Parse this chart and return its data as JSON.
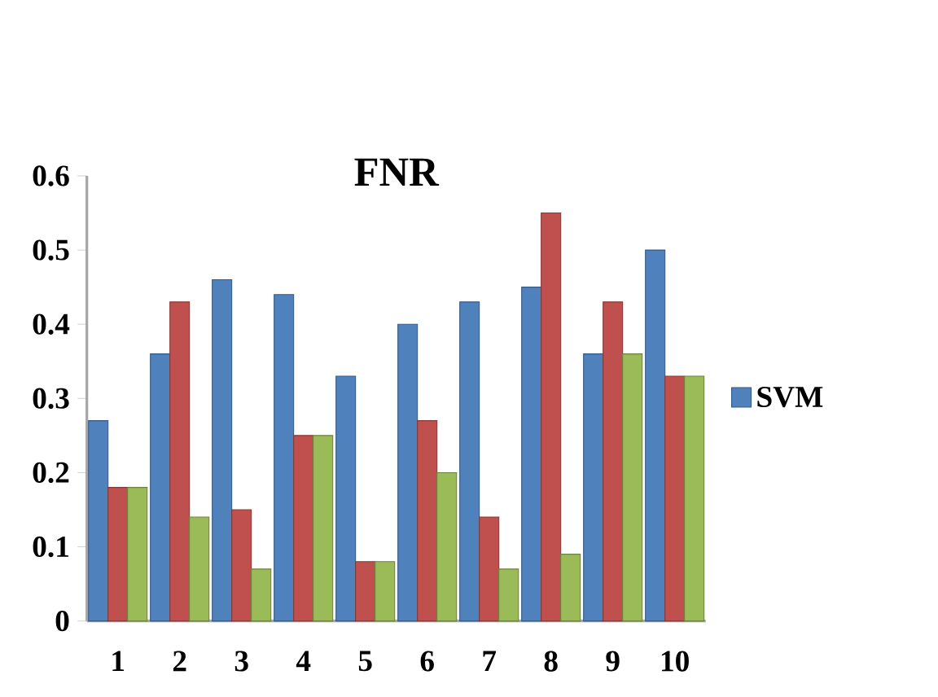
{
  "chart_data": {
    "type": "bar",
    "title": "FNR",
    "categories": [
      "1",
      "2",
      "3",
      "4",
      "5",
      "6",
      "7",
      "8",
      "9",
      "10"
    ],
    "series": [
      {
        "name": "SVM",
        "color": "#4f81bd",
        "values": [
          0.27,
          0.36,
          0.46,
          0.44,
          0.33,
          0.4,
          0.43,
          0.45,
          0.36,
          0.5
        ]
      },
      {
        "color": "#c0504d",
        "values": [
          0.18,
          0.43,
          0.15,
          0.25,
          0.08,
          0.27,
          0.14,
          0.55,
          0.43,
          0.33
        ]
      },
      {
        "color": "#9bbb59",
        "values": [
          0.18,
          0.14,
          0.07,
          0.25,
          0.08,
          0.2,
          0.07,
          0.09,
          0.36,
          0.33
        ]
      }
    ],
    "ylim": [
      0,
      0.6
    ],
    "yticks": [
      0,
      0.1,
      0.2,
      0.3,
      0.4,
      0.5,
      0.6
    ],
    "grid": false,
    "legend": "right"
  }
}
